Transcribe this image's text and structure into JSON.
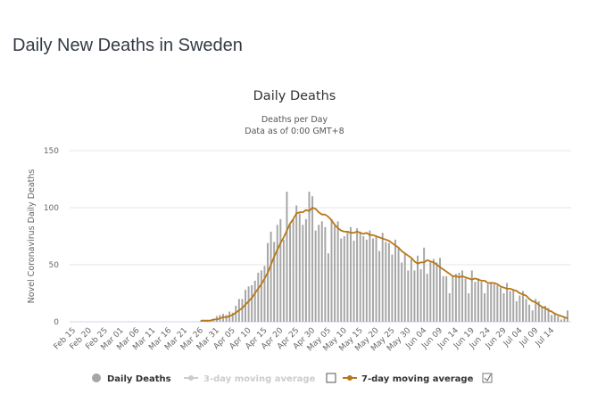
{
  "page": {
    "title": "Daily New Deaths in Sweden"
  },
  "chart_data": {
    "type": "bar",
    "title": "Daily Deaths",
    "subtitle_lines": [
      "Deaths per Day",
      "Data as of 0:00 GMT+8"
    ],
    "xlabel": "",
    "ylabel": "Novel Coronavirus Daily Deaths",
    "ylim": [
      0,
      150
    ],
    "yticks": [
      0,
      50,
      100,
      150
    ],
    "grid": true,
    "legend_position": "bottom",
    "start_date": "Feb 15",
    "x_tick_every_days": 5,
    "categories_tick_labels": [
      "Feb 15",
      "Feb 20",
      "Feb 25",
      "Mar 01",
      "Mar 06",
      "Mar 11",
      "Mar 16",
      "Mar 21",
      "Mar 26",
      "Mar 31",
      "Apr 05",
      "Apr 10",
      "Apr 15",
      "Apr 20",
      "Apr 25",
      "Apr 30",
      "May 05",
      "May 10",
      "May 15",
      "May 20",
      "May 25",
      "May 30",
      "Jun 04",
      "Jun 09",
      "Jun 14",
      "Jun 19",
      "Jun 24",
      "Jun 29",
      "Jul 04",
      "Jul 09",
      "Jul 14"
    ],
    "series": [
      {
        "name": "Daily Deaths",
        "type": "bar",
        "color": "#a6a6a6",
        "visible": true,
        "values": [
          0,
          0,
          0,
          0,
          0,
          0,
          0,
          0,
          0,
          0,
          0,
          0,
          0,
          0,
          0,
          0,
          0,
          0,
          0,
          0,
          0,
          0,
          0,
          0,
          0,
          0,
          0,
          0,
          0,
          0,
          0,
          0,
          0,
          0,
          0,
          0,
          0,
          0,
          0,
          0,
          1,
          1,
          1,
          1,
          2,
          5,
          6,
          7,
          6,
          9,
          8,
          14,
          20,
          20,
          28,
          31,
          32,
          36,
          43,
          45,
          49,
          69,
          79,
          70,
          85,
          90,
          72,
          114,
          85,
          90,
          102,
          95,
          85,
          90,
          114,
          110,
          80,
          85,
          88,
          83,
          60,
          90,
          84,
          88,
          73,
          75,
          79,
          83,
          71,
          82,
          79,
          75,
          72,
          80,
          73,
          75,
          62,
          78,
          70,
          69,
          59,
          72,
          65,
          52,
          60,
          45,
          55,
          45,
          58,
          46,
          65,
          42,
          53,
          55,
          52,
          56,
          40,
          40,
          25,
          40,
          42,
          43,
          45,
          38,
          25,
          45,
          35,
          38,
          35,
          25,
          33,
          35,
          33,
          32,
          30,
          25,
          34,
          27,
          28,
          18,
          23,
          27,
          20,
          15,
          10,
          20,
          18,
          13,
          14,
          12,
          6,
          8,
          5,
          2,
          3,
          10
        ],
        "data_offset_days": 0
      },
      {
        "name": "3-day moving average",
        "type": "line",
        "color": "#cccccc",
        "visible": false
      },
      {
        "name": "7-day moving average",
        "type": "line",
        "color": "#b87716",
        "visible": true,
        "values": [
          0,
          0,
          0,
          0,
          0,
          0,
          0,
          0,
          0,
          0,
          0,
          0,
          0,
          0,
          0,
          0,
          0,
          0,
          0,
          0,
          0,
          0,
          0,
          0,
          0,
          0,
          0,
          0,
          0,
          0,
          0,
          0,
          0,
          0,
          0,
          0,
          0,
          0,
          0,
          0,
          1,
          1,
          1,
          1,
          2,
          2,
          3,
          4,
          4,
          5,
          6,
          8,
          10,
          12,
          15,
          18,
          21,
          25,
          29,
          33,
          38,
          43,
          50,
          57,
          63,
          69,
          74,
          80,
          86,
          90,
          95,
          96,
          96,
          98,
          97,
          100,
          99,
          96,
          94,
          94,
          92,
          89,
          85,
          82,
          80,
          79,
          79,
          78,
          78,
          79,
          78,
          77,
          78,
          76,
          76,
          75,
          74,
          73,
          72,
          71,
          69,
          67,
          65,
          62,
          60,
          58,
          56,
          53,
          51,
          52,
          52,
          54,
          53,
          52,
          50,
          48,
          46,
          44,
          42,
          40,
          40,
          39,
          40,
          39,
          38,
          37,
          38,
          37,
          36,
          36,
          34,
          34,
          34,
          33,
          31,
          30,
          29,
          29,
          28,
          27,
          25,
          24,
          23,
          20,
          18,
          17,
          15,
          13,
          12,
          10,
          9,
          7,
          6,
          5,
          4,
          3
        ]
      }
    ]
  },
  "legend": {
    "items": [
      {
        "label": "Daily Deaths",
        "active": true
      },
      {
        "label": "3-day moving average",
        "active": false,
        "checkbox_checked": false
      },
      {
        "label": "7-day moving average",
        "active": true,
        "checkbox_checked": true
      }
    ]
  }
}
